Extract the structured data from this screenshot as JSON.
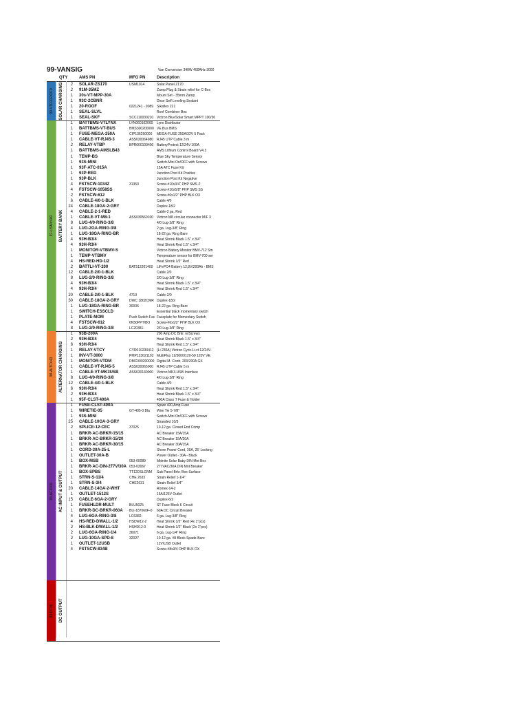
{
  "title": "99-VANSIG",
  "subtitle": "Van Conversion 340W 400AHz 3000",
  "headers": {
    "qty": "QTY",
    "ams": "AMS PN",
    "mfg": "MFG PN",
    "desc": "Description"
  },
  "band_colors": [
    "#2e75b6",
    "#70ad47",
    "#ed7d31",
    "#7030a0",
    "#c00000"
  ],
  "sections": [
    {
      "band": "99-VTD102X370",
      "label": "SOLAR CHARGING",
      "color": "#2e75b6",
      "rows": 7
    },
    {
      "band": "97-LISMV400",
      "label": "BATTERY BANK",
      "color": "#70ad47",
      "rows": 38
    },
    {
      "band": "98-ALTCV43",
      "label": "ALTERNATOR CHARGING",
      "color": "#ed7d31",
      "rows": 13
    },
    {
      "band": "99-AC3000",
      "label": "AC INPUT & OUTPUT",
      "color": "#7030a0",
      "rows": 32
    },
    {
      "band": "99-DC0U",
      "label": "DC OUTPUT",
      "color": "#c00000",
      "rows": 11
    }
  ],
  "rows": [
    {
      "qty": "2",
      "pn": "SOLAR-ZS170",
      "mfg": "USM1014",
      "desc": "Solar Panel Z170"
    },
    {
      "qty": "2",
      "pn": "91M-35MZ",
      "mfg": "",
      "desc": "Zamp Plug & Strain relief for C-Box"
    },
    {
      "qty": "1",
      "pn": "30s-VT-MPP-30A",
      "mfg": "",
      "desc": "Mount Set - 35mm Zamp"
    },
    {
      "qty": "1",
      "pn": "93C-2CBNR",
      "mfg": "",
      "desc": "Dicor Self Leveling Sealant"
    },
    {
      "qty": "1",
      "pn": "20-ROOF",
      "mfg": "0221241 - 9089",
      "desc": "Sikaflex 221"
    },
    {
      "qty": "1",
      "pn": "SEAL-SLVL",
      "mfg": "",
      "desc": "Roof Combiner Box"
    },
    {
      "qty": "1",
      "pn": "SEAL-SKF",
      "mfg": "SCC110030210",
      "desc": "Victron BlueSolar Smart MPPT 100/30"
    },
    {
      "qty": "1",
      "pn": "BATTBMS-VTLYNX",
      "mfg": "LYN060102000",
      "desc": "Lynx Distributor"
    },
    {
      "qty": "1",
      "pn": "BATTBMS-VT-BUS",
      "mfg": "BMS300200000",
      "desc": "VE.Bus BMS"
    },
    {
      "qty": "1",
      "pn": "FUSE-MEGA-250A",
      "mfg": "CIP136250000",
      "desc": "MEGA-FUSE 250A/32V 5 Pack"
    },
    {
      "qty": "1",
      "pn": "CABLE-VT-RJ45-3",
      "mfg": "ASS030064980",
      "desc": "RJ45 UTP Cable 3 m"
    },
    {
      "qty": "2",
      "pn": "RELAY-VTBP",
      "mfg": "BPR000100400",
      "desc": "BatteryProtect 12/24V-100A"
    },
    {
      "qty": "1",
      "pn": "BATTBMS-AMSLB43",
      "mfg": "",
      "desc": "AMS Lithium Control Board V4.3"
    },
    {
      "qty": "1",
      "pn": "TEMP-BS",
      "mfg": "",
      "desc": "Blue Sky Temperature Sensor"
    },
    {
      "qty": "1",
      "pn": "93S-MINI",
      "mfg": "",
      "desc": "Switch-Mini On/OFF with Screws"
    },
    {
      "qty": "1",
      "pn": "93F-ATC-015A",
      "mfg": "",
      "desc": "15A ATC Fuse Kit"
    },
    {
      "qty": "1",
      "pn": "93P-RED",
      "mfg": "",
      "desc": "Junction Post Kit Positive"
    },
    {
      "qty": "1",
      "pn": "93P-BLK",
      "mfg": "",
      "desc": "Junction Post Kit Negative"
    },
    {
      "qty": "4",
      "pn": "FSTSCW-1034Z",
      "mfg": "31350",
      "desc": "Screw-#10x3/4\" PHP SMS Z"
    },
    {
      "qty": "4",
      "pn": "FSTSCW-1058SS",
      "mfg": "",
      "desc": "Screw-#10x5/8\" PHP SMS SS"
    },
    {
      "qty": "2",
      "pn": "FSTSCW-612",
      "mfg": "",
      "desc": "Screw-#6x1/2\" PHP BLK OX"
    },
    {
      "qty": "6",
      "pn": "CABLE-4/0-1-BLK",
      "mfg": "",
      "desc": "Cable 4/0"
    },
    {
      "qty": "24",
      "pn": "CABLE-18GA-2-GRY",
      "mfg": "",
      "desc": "Duplex-18/2"
    },
    {
      "qty": "4",
      "pn": "CABLE-2-1-RED",
      "mfg": "",
      "desc": "Cable-2 ga. Red"
    },
    {
      "qty": "1",
      "pn": "CABLE-VT-M8-1",
      "mfg": "ASS030560100",
      "desc": "Victron M8 circular connector M/F 3"
    },
    {
      "qty": "8",
      "pn": "LUG-4/0-RING-3/8",
      "mfg": "",
      "desc": "4/0 Lug-3/8\" Ring"
    },
    {
      "qty": "4",
      "pn": "LUG-2GA-RING-3/8",
      "mfg": "",
      "desc": "2 ga. Lug-3/8\" Ring"
    },
    {
      "qty": "1",
      "pn": "LUG-18GA-RING-BR",
      "mfg": "",
      "desc": "18-22 ga. Ring Bare"
    },
    {
      "qty": "4",
      "pn": "93H-B3/4",
      "mfg": "",
      "desc": "Heat Shrink Black 1.5\" x 3/4\""
    },
    {
      "qty": "4",
      "pn": "93H-R3/4",
      "mfg": "",
      "desc": "Heat Shrink Red 1.5\" x 3/4\""
    },
    {
      "qty": "1",
      "pn": "MONITOR-VTBMV-S",
      "mfg": "",
      "desc": "Victron Battery Monitor BMV-712 Sm"
    },
    {
      "qty": "1",
      "pn": "TEMP-VTBMV",
      "mfg": "",
      "desc": "Temperature sensor for BMV-700 ser"
    },
    {
      "qty": "4",
      "pn": "HS-RED-HD-1/2",
      "mfg": "",
      "desc": "Heat Shrink 1/2\" Red"
    },
    {
      "qty": "2",
      "pn": "BATTLI-VT-200",
      "mfg": "BAT512201400",
      "desc": "LiFePO4 Battery 12,8V/200Ah - BMS"
    },
    {
      "qty": "12",
      "pn": "CABLE-2/0-1-BLK",
      "mfg": "",
      "desc": "Cable 2/0"
    },
    {
      "qty": "8",
      "pn": "LUG-2/0-RING-3/8",
      "mfg": "",
      "desc": "2/0 Lug-3/8\" Ring"
    },
    {
      "qty": "4",
      "pn": "93H-B3/4",
      "mfg": "",
      "desc": "Heat Shrink Black 1.5\" x 3/4\""
    },
    {
      "qty": "4",
      "pn": "93H-R3/4",
      "mfg": "",
      "desc": "Heat Shrink Red 1.5\" x 3/4\""
    },
    {
      "qty": "20",
      "pn": "CABLE-2/0-1-BLK",
      "mfg": "4719",
      "desc": "Cable-2/0"
    },
    {
      "qty": "30",
      "pn": "CABLE-18GA-2-GRY",
      "mfg": "DWC 1802CMR",
      "desc": "Duplex-18/2"
    },
    {
      "qty": "1",
      "pn": "LUG-18GA-RING-BR",
      "mfg": "30006",
      "desc": "18-22 ga. Ring-Bare"
    },
    {
      "qty": "1",
      "pn": "SWITCH-ESSCLD",
      "mfg": "",
      "desc": "Essential black momentary switch"
    },
    {
      "qty": "1",
      "pn": "PLATE-MOM",
      "mfg": "Push Switch Fac",
      "desc": "Faceplate for Momentary Switch"
    },
    {
      "qty": "4",
      "pn": "FSTSCW-612",
      "mfg": "6N50PPT/BO",
      "desc": "Screw-#6x1/2\" PHP BLK OX"
    },
    {
      "qty": "8",
      "pn": "LUG-2/0-RING-3/8",
      "mfg": "LC20381-",
      "desc": "2/0 Lug-3/8\" Ring"
    },
    {
      "qty": "1",
      "pn": "93B-200A",
      "mfg": "",
      "desc": "200 Amp DC Brkr. w/Screws"
    },
    {
      "qty": "2",
      "pn": "93H-B3/4",
      "mfg": "",
      "desc": "Heat Shrink Black 1.5\" x 3/4\""
    },
    {
      "qty": "6",
      "pn": "93H-R3/4",
      "mfg": "",
      "desc": "Heat Shrink Red 1.5\" x 3/4\""
    },
    {
      "qty": "1",
      "pn": "RELAY-VTCY",
      "mfg": "CYR010230412",
      "desc": "(Li 230A) Victron Cyrix-Li-ct 12/24V-"
    },
    {
      "qty": "1",
      "pn": "INV-VT-3000",
      "mfg": "PMP123021102",
      "desc": "MultiPlus 12/3000/120-50 120V VE."
    },
    {
      "qty": "1",
      "pn": "MONITOR-VTDM",
      "mfg": "DMC000200000",
      "desc": "Digital M. Contr. 200/200A GX"
    },
    {
      "qty": "1",
      "pn": "CABLE-VT-RJ45-5",
      "mfg": "ASS030065000",
      "desc": "RJ45 UTP Cable 5 m"
    },
    {
      "qty": "1",
      "pn": "CABLE-VT-MK3USB",
      "mfg": "ASS030140000",
      "desc": "Victron MK3-USB Interface"
    },
    {
      "qty": "8",
      "pn": "LUG-4/0-RING-3/8",
      "mfg": "",
      "desc": "4/0 Lug-3/8\" Ring"
    },
    {
      "qty": "12",
      "pn": "CABLE-4/0-1-BLK",
      "mfg": "",
      "desc": "Cable 4/0"
    },
    {
      "qty": "6",
      "pn": "93H-R3/4",
      "mfg": "",
      "desc": "Heat Shrink Red 1.5\" x 3/4\""
    },
    {
      "qty": "2",
      "pn": "93H-B3/4",
      "mfg": "",
      "desc": "Heat Shrink Black 1.5\" x 3/4\""
    },
    {
      "qty": "1",
      "pn": "95F-CLST-400A",
      "mfg": "",
      "desc": "400A Class T Fuse & Holder"
    },
    {
      "qty": "1",
      "pn": "FUSE-CLST-400A",
      "mfg": "",
      "desc": "Spare 400 Amp Fuse"
    },
    {
      "qty": "1",
      "pn": "WIRETIE-05",
      "mfg": "GT-405-0 Bla",
      "desc": "Wire Tie 5-7/8\""
    },
    {
      "qty": "1",
      "pn": "93S-MINI",
      "mfg": "",
      "desc": "Switch-Mini On/OFF with Screws"
    },
    {
      "qty": "25",
      "pn": "CABLE-10GA-3-GRY",
      "mfg": "",
      "desc": "Stranded 10/3"
    },
    {
      "qty": "2",
      "pn": "SPLICE-12-CEC",
      "mfg": "37025",
      "desc": "10-12 ga. Closed End Crimp"
    },
    {
      "qty": "1",
      "pn": "BRKR-AC-BRKR-15/15",
      "mfg": "",
      "desc": "AC Breaker 15A/15A"
    },
    {
      "qty": "1",
      "pn": "BRKR-AC-BRKR-15/20",
      "mfg": "",
      "desc": "AC Breaker 15A/20A"
    },
    {
      "qty": "1",
      "pn": "BRKR-AC-BRKR-30/15",
      "mfg": "",
      "desc": "AC Breaker 30A/15A"
    },
    {
      "qty": "1",
      "pn": "CORD-30A-25-L",
      "mfg": "",
      "desc": "Shore Power Cord, 30A, 25' Locking"
    },
    {
      "qty": "1",
      "pn": "OUTLET-30A-B",
      "mfg": "",
      "desc": "Power Outlet - 30A - Black"
    },
    {
      "qty": "1",
      "pn": "BOX-MSB",
      "mfg": "053-00089",
      "desc": "Midnite Solar Baby DIN Mnt Box"
    },
    {
      "qty": "1",
      "pn": "BRKR-AC-DIN-277V/30A",
      "mfg": "053-03067",
      "desc": "277VAC/30A DIN Mnt Breaker"
    },
    {
      "qty": "1",
      "pn": "BOX-SPBS",
      "mfg": "TT12DSLGNM",
      "desc": "Sub Panel Brkr. Box-Surface"
    },
    {
      "qty": "1",
      "pn": "STRN-S-11/4",
      "mfg": "CHE 2633",
      "desc": "Strain Relief 1-1/4\""
    },
    {
      "qty": "1",
      "pn": "STRN-S-3/4",
      "mfg": "CHE2631",
      "desc": "Strain Relief 3/4\""
    },
    {
      "qty": "20",
      "pn": "CABLE-14GA-2-WHT",
      "mfg": "",
      "desc": "Romex-14-2"
    },
    {
      "qty": "1",
      "pn": "OUTLET-1512S",
      "mfg": "",
      "desc": "15A/125V Outlet"
    },
    {
      "qty": "15",
      "pn": "CABLE-6GA-2-GRY",
      "mfg": "",
      "desc": "Duplex-6/2"
    },
    {
      "qty": "1",
      "pn": "FUSEHLDR-MULT",
      "mfg": "BLU5025",
      "desc": "ST Fuse Block 6 Circuit"
    },
    {
      "qty": "1",
      "pn": "BRKR-DC-BRKR-060A",
      "mfg": "BLI-187060F-0",
      "desc": "60A DC Circuit Breaker"
    },
    {
      "qty": "4",
      "pn": "LUG-6GA-RING-3/8",
      "mfg": "LC6382-",
      "desc": "6 ga. Lug-3/8\" Ring"
    },
    {
      "qty": "4",
      "pn": "HS-RED-DWALL-1/2",
      "mfg": "HSDW12-2",
      "desc": "Heat Shrink 1/2\" Red (4x 1\"pcs)"
    },
    {
      "qty": "2",
      "pn": "HS-BLK-DWALL-1/2",
      "mfg": "HSHD12-0",
      "desc": "Heat Shrink 1/2\" Black (2x 1\"pcs)"
    },
    {
      "qty": "2",
      "pn": "LUG-6GA-RING-1/4",
      "mfg": "36071",
      "desc": "6 ga. Lug-1/4\" Ring"
    },
    {
      "qty": "2",
      "pn": "LUG-10GA-SPD-8",
      "mfg": "32027",
      "desc": "10-12 ga. #8 Block Spade-Bare"
    },
    {
      "qty": "1",
      "pn": "OUTLET-12USB",
      "mfg": "",
      "desc": "12V/USB Outlet"
    },
    {
      "qty": "4",
      "pn": "FSTSCW-834B",
      "mfg": "",
      "desc": "Screw-#8x3/4 OHP BLK OX"
    }
  ]
}
